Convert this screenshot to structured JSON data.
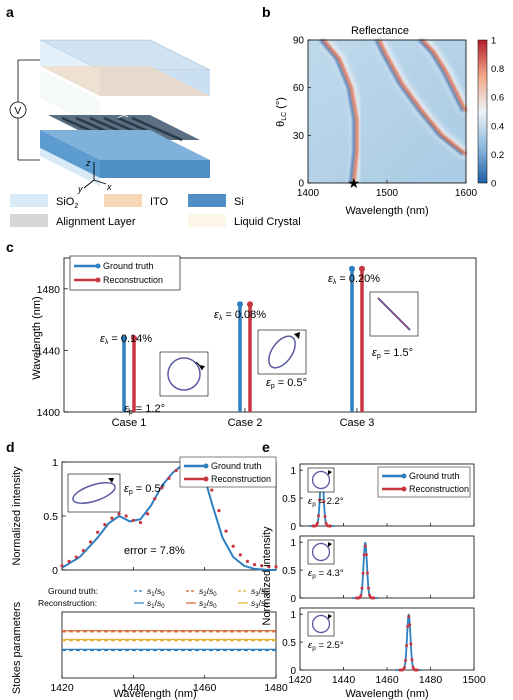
{
  "panel_labels": {
    "a": "a",
    "b": "b",
    "c": "c",
    "d": "d",
    "e": "e"
  },
  "panel_a": {
    "voltage_symbol": "V",
    "theta_label": "θ",
    "theta_sub": "LC",
    "axes": {
      "z": "z",
      "y": "y",
      "x": "x"
    },
    "legend": [
      {
        "label": "SiO",
        "sub": "2",
        "color": "#d9eaf7"
      },
      {
        "label": "ITO",
        "sub": "",
        "color": "#f6d7b5"
      },
      {
        "label": "Si",
        "sub": "",
        "color": "#4f8fc6"
      },
      {
        "label": "Alignment Layer",
        "sub": "",
        "color": "#d6d6d6"
      },
      {
        "label": "Liquid Crystal",
        "sub": "",
        "color": "#fbf6e6"
      }
    ]
  },
  "chart_data": [
    {
      "id": "b",
      "type": "heatmap",
      "title": "Reflectance",
      "xlabel": "Wavelength (nm)",
      "ylabel": "θ",
      "ylabel_sub": "LC",
      "ylabel_unit": " (°)",
      "xlim": [
        1400,
        1600
      ],
      "ylim": [
        0,
        90
      ],
      "xticks": [
        "1400",
        "1500",
        "1600"
      ],
      "yticks": [
        "0",
        "30",
        "60",
        "90"
      ],
      "colorbar": {
        "ticks": [
          "0",
          "0.2",
          "0.4",
          "0.6",
          "0.8",
          "1"
        ],
        "low": "#1f5fa8",
        "mid": "#f0f4f8",
        "high": "#b41e2a"
      },
      "resonance_curves": [
        [
          [
            1420,
            90
          ],
          [
            1440,
            78
          ],
          [
            1455,
            60
          ],
          [
            1462,
            40
          ],
          [
            1462,
            20
          ],
          [
            1458,
            0
          ]
        ],
        [
          [
            1490,
            90
          ],
          [
            1500,
            80
          ],
          [
            1520,
            62
          ],
          [
            1545,
            45
          ],
          [
            1570,
            30
          ],
          [
            1600,
            18
          ]
        ],
        [
          [
            1545,
            90
          ],
          [
            1560,
            82
          ],
          [
            1575,
            70
          ],
          [
            1590,
            55
          ],
          [
            1600,
            45
          ]
        ]
      ],
      "marker": {
        "x": 1458,
        "y": 0,
        "symbol": "★"
      }
    },
    {
      "id": "c",
      "type": "bar",
      "xlabel": "",
      "ylabel": "Wavelength (nm)",
      "ylim": [
        1400,
        1500
      ],
      "yticks": [
        "1400",
        "1440",
        "1480"
      ],
      "categories": [
        "Case 1",
        "Case 2",
        "Case 3"
      ],
      "series": [
        {
          "name": "Ground truth",
          "color": "#2e7fc0",
          "values": [
            1448,
            1470,
            1493
          ]
        },
        {
          "name": "Reconstruction",
          "color": "#c8363f",
          "values": [
            1448,
            1470,
            1493
          ]
        }
      ],
      "annotations": [
        {
          "eps_lambda": "ε",
          "sub": "λ",
          "eq": " = 0.14%",
          "eps_p": "ε",
          "psub": "p",
          "peq": " = 1.2°"
        },
        {
          "eps_lambda": "ε",
          "sub": "λ",
          "eq": " = 0.08%",
          "eps_p": "ε",
          "psub": "p",
          "peq": " = 0.5°"
        },
        {
          "eps_lambda": "ε",
          "sub": "λ",
          "eq": " = 0.20%",
          "eps_p": "ε",
          "psub": "p",
          "peq": " = 1.5°"
        }
      ]
    },
    {
      "id": "d",
      "type": "line",
      "ylabel": "Normalized intensity",
      "xlim": [
        1420,
        1480
      ],
      "ylim": [
        0,
        1
      ],
      "yticks": [
        "0",
        "0.5",
        "1"
      ],
      "series": [
        {
          "name": "Ground truth",
          "color": "#2e7fc0",
          "x": [
            1420,
            1425,
            1430,
            1433,
            1436,
            1439,
            1442,
            1445,
            1448,
            1451,
            1454,
            1456,
            1458,
            1460,
            1462,
            1465,
            1468,
            1471,
            1474,
            1478,
            1480
          ],
          "y": [
            0.02,
            0.12,
            0.3,
            0.43,
            0.5,
            0.45,
            0.47,
            0.6,
            0.78,
            0.9,
            0.98,
            1.0,
            0.96,
            0.85,
            0.62,
            0.3,
            0.12,
            0.04,
            0.01,
            0.0,
            0.0
          ]
        },
        {
          "name": "Reconstruction",
          "color": "#c8363f",
          "x": [
            1420,
            1422,
            1424,
            1426,
            1428,
            1430,
            1432,
            1434,
            1436,
            1438,
            1440,
            1442,
            1444,
            1446,
            1448,
            1450,
            1452,
            1454,
            1456,
            1458,
            1460,
            1462,
            1464,
            1466,
            1468,
            1470,
            1472,
            1474,
            1476,
            1478,
            1480
          ],
          "y": [
            0.04,
            0.08,
            0.12,
            0.18,
            0.26,
            0.35,
            0.42,
            0.48,
            0.52,
            0.5,
            0.46,
            0.44,
            0.52,
            0.66,
            0.76,
            0.85,
            0.92,
            0.96,
            0.99,
            0.95,
            0.88,
            0.74,
            0.55,
            0.36,
            0.22,
            0.14,
            0.08,
            0.05,
            0.04,
            0.03,
            0.03
          ]
        }
      ],
      "error_text": "error = 7.8%",
      "eps": {
        "sym": "ε",
        "sub": "p",
        "eq": " = 0.5°"
      }
    },
    {
      "id": "d_stokes",
      "type": "line",
      "ylabel": "Stokes parameters",
      "xlabel": "Wavelength (nm)",
      "xlim": [
        1420,
        1480
      ],
      "xticks": [
        "1420",
        "1440",
        "1460",
        "1480"
      ],
      "row_labels": [
        "Ground truth:",
        "Reconstruction:"
      ],
      "series": [
        {
          "name": "s1/s0",
          "top": "s",
          "sub": "1",
          "den": "s",
          "densub": "0",
          "color": "#2e7fc0",
          "value_gt": 0.55,
          "value_rec": 0.56
        },
        {
          "name": "s2/s0",
          "top": "s",
          "sub": "2",
          "den": "s",
          "densub": "0",
          "color": "#d6602a",
          "value_gt": 0.72,
          "value_rec": 0.73
        },
        {
          "name": "s3/s0",
          "top": "s",
          "sub": "3",
          "den": "s",
          "densub": "0",
          "color": "#e8b030",
          "value_gt": 0.64,
          "value_rec": 0.65
        }
      ]
    },
    {
      "id": "e",
      "type": "line",
      "ylabel": "Normalized intensity",
      "xlabel": "Wavelength (nm)",
      "xlim": [
        1420,
        1500
      ],
      "xticks": [
        "1420",
        "1440",
        "1460",
        "1480",
        "1500"
      ],
      "yticks": [
        "0",
        "0.5",
        "1"
      ],
      "legend": [
        "Ground truth",
        "Reconstruction"
      ],
      "subplots": [
        {
          "center": 1430,
          "eps": {
            "sym": "ε",
            "sub": "p",
            "eq": " = 2.2°"
          }
        },
        {
          "center": 1450,
          "eps": {
            "sym": "ε",
            "sub": "p",
            "eq": " = 4.3°"
          }
        },
        {
          "center": 1470,
          "eps": {
            "sym": "ε",
            "sub": "p",
            "eq": " = 2.5°"
          }
        }
      ]
    }
  ]
}
